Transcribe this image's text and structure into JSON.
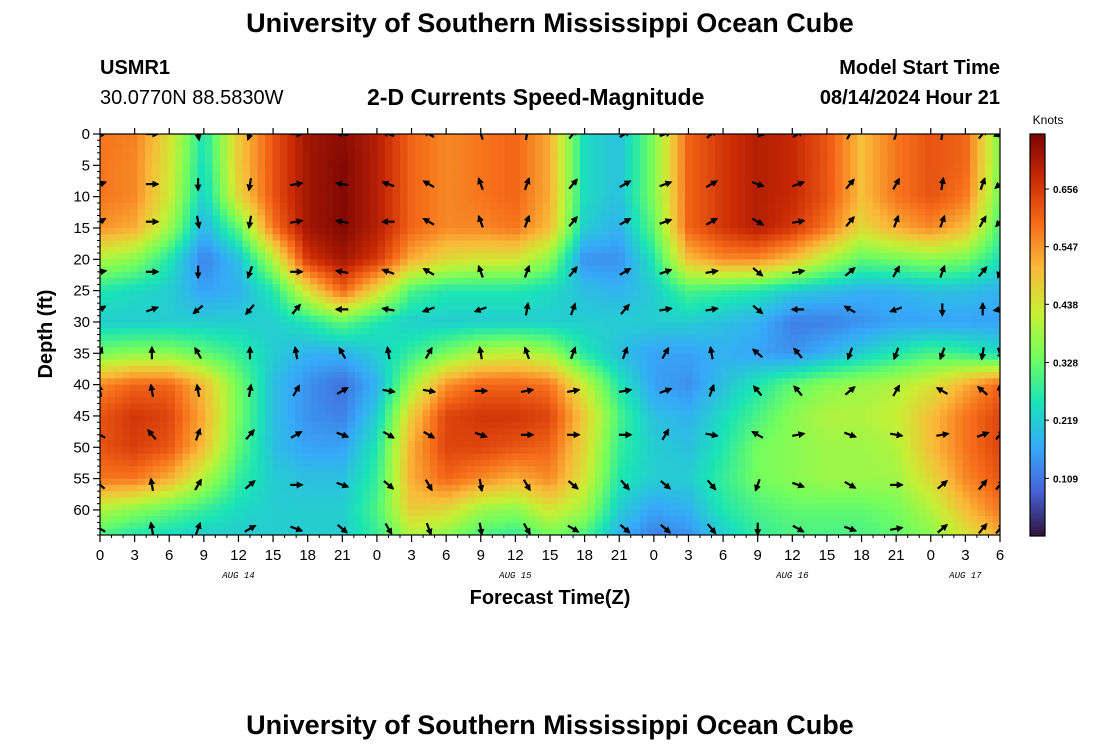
{
  "header": {
    "title": "University of Southern Mississippi Ocean Cube",
    "station_id": "USMR1",
    "coordinates": "30.0770N  88.5830W",
    "subtitle": "2-D Currents Speed-Magnitude",
    "model_start_label": "Model Start Time",
    "model_start_value": "08/14/2024 Hour 21"
  },
  "footer": {
    "title": "University of Southern Mississippi Ocean Cube"
  },
  "chart_data": {
    "type": "heatmap",
    "title": "2-D Currents Speed-Magnitude",
    "xlabel": "Forecast Time(Z)",
    "ylabel": "Depth (ft)",
    "x_units": "forecast hours from 2024-08-14 00Z",
    "xlim": [
      0,
      78
    ],
    "ylim": [
      0,
      64
    ],
    "y_inverted": true,
    "x_tick_labels": [
      "0",
      "3",
      "6",
      "9",
      "12",
      "15",
      "18",
      "21",
      "0",
      "3",
      "6",
      "9",
      "12",
      "15",
      "18",
      "21",
      "0",
      "3",
      "6",
      "9",
      "12",
      "15",
      "18",
      "21",
      "0",
      "3",
      "6"
    ],
    "date_labels": [
      {
        "label": "AUG 14",
        "hour": 12
      },
      {
        "label": "AUG 15",
        "hour": 36
      },
      {
        "label": "AUG 16",
        "hour": 60
      },
      {
        "label": "AUG 17",
        "hour": 75
      }
    ],
    "y_tick_labels": [
      "0",
      "5",
      "10",
      "15",
      "20",
      "25",
      "30",
      "35",
      "40",
      "45",
      "50",
      "55",
      "60"
    ],
    "colorbar": {
      "title": "Knots",
      "ticks": [
        "0.656",
        "0.547",
        "0.438",
        "0.328",
        "0.219",
        "0.109"
      ],
      "min": 0.0,
      "max": 0.76,
      "colors": [
        "#30123b",
        "#4662d7",
        "#36aaf9",
        "#1ae4b6",
        "#72fe5e",
        "#c8ef34",
        "#faba39",
        "#f66b19",
        "#ca2a04",
        "#7a0403"
      ]
    },
    "speed_grid": {
      "hours": [
        0,
        3,
        6,
        9,
        12,
        15,
        18,
        21,
        24,
        27,
        30,
        33,
        36,
        39,
        42,
        45,
        48,
        51,
        54,
        57,
        60,
        63,
        66,
        69,
        72,
        75,
        78
      ],
      "depths_ft": [
        0,
        5,
        10,
        15,
        20,
        25,
        30,
        35,
        40,
        45,
        50,
        55,
        60,
        64
      ],
      "values_knots": [
        [
          0.58,
          0.57,
          0.45,
          0.25,
          0.48,
          0.62,
          0.72,
          0.74,
          0.7,
          0.6,
          0.56,
          0.58,
          0.6,
          0.52,
          0.24,
          0.2,
          0.35,
          0.6,
          0.66,
          0.7,
          0.68,
          0.62,
          0.5,
          0.58,
          0.62,
          0.6,
          0.35
        ],
        [
          0.58,
          0.56,
          0.44,
          0.24,
          0.48,
          0.62,
          0.72,
          0.75,
          0.7,
          0.6,
          0.56,
          0.58,
          0.6,
          0.52,
          0.24,
          0.2,
          0.35,
          0.6,
          0.66,
          0.7,
          0.68,
          0.62,
          0.5,
          0.58,
          0.62,
          0.6,
          0.35
        ],
        [
          0.58,
          0.56,
          0.43,
          0.22,
          0.46,
          0.62,
          0.72,
          0.75,
          0.7,
          0.6,
          0.56,
          0.58,
          0.6,
          0.52,
          0.24,
          0.2,
          0.35,
          0.6,
          0.66,
          0.7,
          0.68,
          0.62,
          0.5,
          0.58,
          0.62,
          0.58,
          0.33
        ],
        [
          0.55,
          0.52,
          0.38,
          0.18,
          0.32,
          0.58,
          0.72,
          0.75,
          0.7,
          0.6,
          0.56,
          0.56,
          0.58,
          0.5,
          0.22,
          0.18,
          0.32,
          0.6,
          0.66,
          0.7,
          0.66,
          0.58,
          0.46,
          0.52,
          0.56,
          0.5,
          0.3
        ],
        [
          0.4,
          0.36,
          0.26,
          0.12,
          0.2,
          0.4,
          0.66,
          0.72,
          0.66,
          0.52,
          0.46,
          0.44,
          0.44,
          0.36,
          0.14,
          0.14,
          0.26,
          0.5,
          0.56,
          0.56,
          0.5,
          0.4,
          0.32,
          0.34,
          0.36,
          0.34,
          0.25
        ],
        [
          0.26,
          0.24,
          0.22,
          0.16,
          0.18,
          0.26,
          0.45,
          0.6,
          0.46,
          0.3,
          0.26,
          0.26,
          0.26,
          0.24,
          0.2,
          0.18,
          0.22,
          0.3,
          0.28,
          0.26,
          0.22,
          0.2,
          0.18,
          0.18,
          0.2,
          0.2,
          0.18
        ],
        [
          0.22,
          0.22,
          0.22,
          0.22,
          0.22,
          0.22,
          0.26,
          0.32,
          0.26,
          0.22,
          0.22,
          0.22,
          0.22,
          0.22,
          0.22,
          0.22,
          0.22,
          0.22,
          0.2,
          0.18,
          0.12,
          0.12,
          0.14,
          0.16,
          0.16,
          0.16,
          0.16
        ],
        [
          0.34,
          0.36,
          0.36,
          0.32,
          0.28,
          0.22,
          0.18,
          0.18,
          0.22,
          0.28,
          0.34,
          0.4,
          0.42,
          0.38,
          0.26,
          0.2,
          0.16,
          0.16,
          0.18,
          0.16,
          0.14,
          0.18,
          0.22,
          0.26,
          0.3,
          0.28,
          0.24
        ],
        [
          0.56,
          0.6,
          0.6,
          0.5,
          0.34,
          0.2,
          0.14,
          0.1,
          0.18,
          0.38,
          0.55,
          0.6,
          0.6,
          0.58,
          0.42,
          0.26,
          0.16,
          0.14,
          0.2,
          0.26,
          0.32,
          0.36,
          0.38,
          0.4,
          0.44,
          0.52,
          0.6
        ],
        [
          0.62,
          0.66,
          0.64,
          0.52,
          0.34,
          0.2,
          0.14,
          0.12,
          0.22,
          0.48,
          0.64,
          0.66,
          0.66,
          0.64,
          0.48,
          0.3,
          0.2,
          0.18,
          0.24,
          0.3,
          0.36,
          0.4,
          0.4,
          0.42,
          0.5,
          0.58,
          0.64
        ],
        [
          0.62,
          0.65,
          0.62,
          0.5,
          0.32,
          0.2,
          0.16,
          0.16,
          0.26,
          0.52,
          0.64,
          0.64,
          0.62,
          0.6,
          0.46,
          0.28,
          0.22,
          0.2,
          0.26,
          0.34,
          0.36,
          0.38,
          0.38,
          0.4,
          0.5,
          0.58,
          0.64
        ],
        [
          0.58,
          0.58,
          0.52,
          0.4,
          0.28,
          0.22,
          0.2,
          0.2,
          0.28,
          0.52,
          0.6,
          0.56,
          0.52,
          0.56,
          0.44,
          0.26,
          0.22,
          0.22,
          0.28,
          0.34,
          0.36,
          0.38,
          0.38,
          0.38,
          0.46,
          0.56,
          0.62
        ],
        [
          0.4,
          0.36,
          0.32,
          0.28,
          0.24,
          0.22,
          0.22,
          0.22,
          0.3,
          0.48,
          0.46,
          0.38,
          0.36,
          0.44,
          0.38,
          0.22,
          0.16,
          0.18,
          0.26,
          0.3,
          0.32,
          0.32,
          0.32,
          0.34,
          0.4,
          0.5,
          0.58
        ],
        [
          0.3,
          0.26,
          0.24,
          0.22,
          0.22,
          0.22,
          0.22,
          0.22,
          0.28,
          0.4,
          0.36,
          0.3,
          0.28,
          0.34,
          0.3,
          0.18,
          0.12,
          0.14,
          0.22,
          0.28,
          0.3,
          0.3,
          0.3,
          0.32,
          0.36,
          0.44,
          0.52
        ]
      ]
    },
    "arrow_hours": [
      0,
      4.5,
      8.5,
      13,
      17,
      21,
      25,
      28.5,
      33,
      37,
      41,
      45.5,
      49,
      53,
      57,
      60.5,
      65,
      69,
      73,
      76.5,
      78
    ],
    "arrow_depths_ft": [
      0,
      8,
      14,
      22,
      28,
      35,
      41,
      48,
      56,
      63
    ],
    "arrow_angles_deg": [
      [
        80,
        90,
        170,
        200,
        90,
        280,
        290,
        300,
        340,
        10,
        40,
        60,
        70,
        50,
        100,
        60,
        30,
        20,
        10,
        40,
        250
      ],
      [
        70,
        90,
        180,
        190,
        80,
        280,
        290,
        300,
        340,
        20,
        40,
        60,
        70,
        60,
        110,
        70,
        40,
        30,
        10,
        20,
        230
      ],
      [
        60,
        90,
        170,
        190,
        80,
        280,
        270,
        300,
        340,
        20,
        40,
        60,
        70,
        60,
        120,
        80,
        40,
        20,
        20,
        30,
        220
      ],
      [
        80,
        90,
        180,
        200,
        90,
        280,
        290,
        300,
        340,
        20,
        40,
        60,
        70,
        80,
        130,
        80,
        50,
        30,
        20,
        40,
        200
      ],
      [
        60,
        70,
        230,
        220,
        40,
        270,
        280,
        250,
        250,
        10,
        20,
        40,
        80,
        80,
        130,
        270,
        300,
        250,
        180,
        0,
        260
      ],
      [
        20,
        0,
        330,
        0,
        350,
        330,
        350,
        30,
        350,
        340,
        20,
        20,
        30,
        350,
        310,
        320,
        200,
        200,
        200,
        190,
        160
      ],
      [
        350,
        350,
        350,
        10,
        30,
        60,
        100,
        100,
        90,
        80,
        80,
        80,
        70,
        20,
        320,
        320,
        50,
        30,
        300,
        310,
        0
      ],
      [
        300,
        320,
        20,
        40,
        60,
        110,
        120,
        120,
        110,
        90,
        90,
        90,
        30,
        100,
        300,
        80,
        110,
        100,
        80,
        70,
        40
      ],
      [
        310,
        350,
        30,
        50,
        90,
        110,
        130,
        150,
        170,
        150,
        130,
        140,
        130,
        140,
        200,
        110,
        120,
        90,
        50,
        40,
        40
      ],
      [
        300,
        350,
        20,
        60,
        110,
        130,
        150,
        160,
        170,
        150,
        120,
        130,
        130,
        140,
        180,
        120,
        110,
        80,
        50,
        40,
        40
      ]
    ]
  }
}
